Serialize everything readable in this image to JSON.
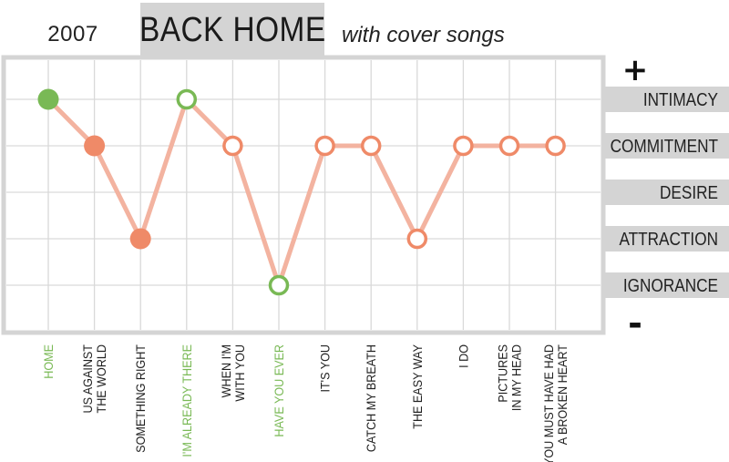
{
  "header": {
    "year": "2007",
    "title": "BACK HOME",
    "subtitle": "with cover songs"
  },
  "colors": {
    "line": "#f3b3a0",
    "orange": "#ef8a68",
    "green": "#79b955",
    "grid": "#d9d9d9",
    "frame": "#d4d4d4",
    "label_bg": "#d4d4d4",
    "text": "#222222"
  },
  "chart_data": {
    "type": "line",
    "scale_top_symbol": "+",
    "scale_bottom_symbol": "-",
    "y_categories": [
      "INTIMACY",
      "COMMITMENT",
      "DESIRE",
      "ATTRACTION",
      "IGNORANCE"
    ],
    "ylim": [
      0,
      5
    ],
    "grid": true,
    "legend": "none",
    "points": [
      {
        "label": "HOME",
        "value": 5,
        "color": "green",
        "filled": true
      },
      {
        "label": "US AGAINST THE WORLD",
        "value": 4,
        "color": "orange",
        "filled": true
      },
      {
        "label": "SOMETHING RIGHT",
        "value": 2,
        "color": "orange",
        "filled": true
      },
      {
        "label": "I'M ALREADY THERE",
        "value": 5,
        "color": "green",
        "filled": false
      },
      {
        "label": "WHEN I'M WITH YOU",
        "value": 4,
        "color": "orange",
        "filled": false
      },
      {
        "label": "HAVE YOU EVER",
        "value": 1,
        "color": "green",
        "filled": false
      },
      {
        "label": "IT'S YOU",
        "value": 4,
        "color": "orange",
        "filled": false
      },
      {
        "label": "CATCH MY BREATH",
        "value": 4,
        "color": "orange",
        "filled": false
      },
      {
        "label": "THE EASY WAY",
        "value": 2,
        "color": "orange",
        "filled": false
      },
      {
        "label": "I DO",
        "value": 4,
        "color": "orange",
        "filled": false
      },
      {
        "label": "PICTURES IN MY HEAD",
        "value": 4,
        "color": "orange",
        "filled": false
      },
      {
        "label": "YOU MUST HAVE HAD A BROKEN HEART",
        "value": 4,
        "color": "orange",
        "filled": false
      }
    ]
  }
}
